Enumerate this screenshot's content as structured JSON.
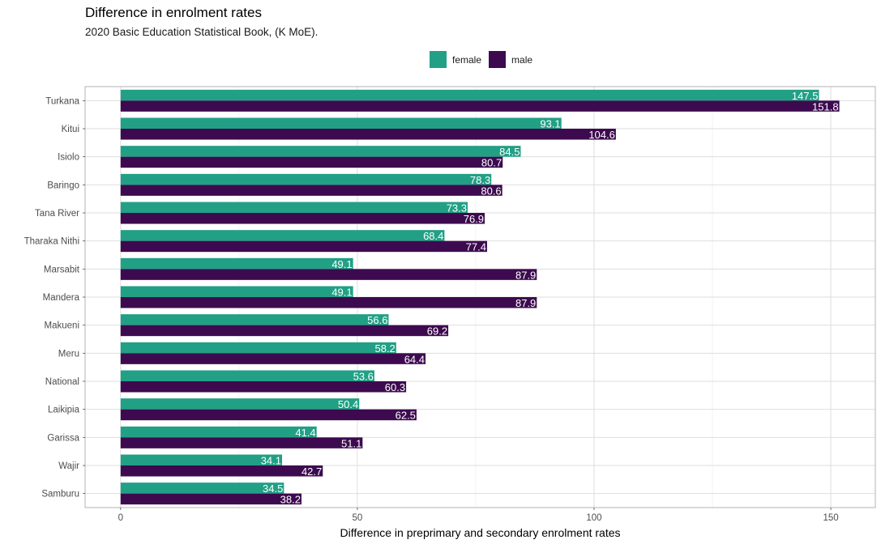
{
  "chart_data": {
    "type": "bar",
    "orientation": "horizontal",
    "title": "Difference in enrolment rates",
    "subtitle": "2020 Basic Education Statistical Book, (K MoE).",
    "xlabel": "Difference in preprimary and secondary enrolment rates",
    "ylabel": "",
    "xlim": [
      -7.5,
      159.4
    ],
    "xticks": [
      0,
      50,
      100,
      150
    ],
    "grid": true,
    "legend_position": "top",
    "categories": [
      "Turkana",
      "Kitui",
      "Isiolo",
      "Baringo",
      "Tana River",
      "Tharaka Nithi",
      "Marsabit",
      "Mandera",
      "Makueni",
      "Meru",
      "National",
      "Laikipia",
      "Garissa",
      "Wajir",
      "Samburu"
    ],
    "series": [
      {
        "name": "female",
        "color": "#21a085",
        "values": [
          147.5,
          93.1,
          84.5,
          78.3,
          73.3,
          68.4,
          49.1,
          49.1,
          56.6,
          58.2,
          53.6,
          50.4,
          41.4,
          34.1,
          34.5
        ]
      },
      {
        "name": "male",
        "color": "#3d0a4f",
        "values": [
          151.8,
          104.6,
          80.7,
          80.6,
          76.9,
          77.4,
          87.9,
          87.9,
          69.2,
          64.4,
          60.3,
          62.5,
          51.1,
          42.7,
          38.2
        ]
      }
    ]
  }
}
